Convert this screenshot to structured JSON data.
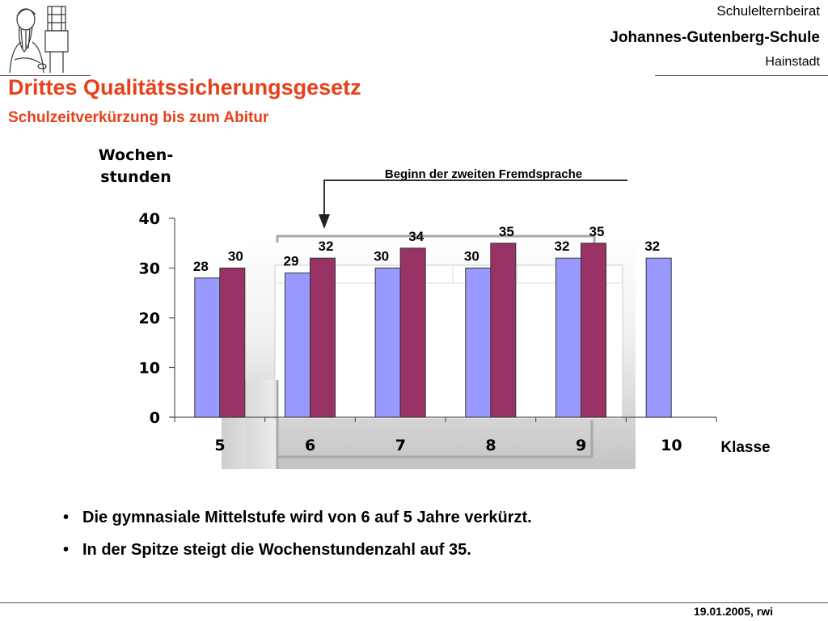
{
  "header": {
    "org_line1": "Schulelternbeirat",
    "org_line2": "Johannes-Gutenberg-Schule",
    "org_line3": "Hainstadt",
    "logo_icon": "gutenberg-portrait-icon"
  },
  "title": "Drittes Qualitätssicherungsgesetz",
  "subtitle": "Schulzeitverkürzung bis zum Abitur",
  "chart_data": {
    "type": "bar",
    "ylabel_line1": "Wochen-",
    "ylabel_line2": "stunden",
    "xlabel": "Klasse",
    "ylim": [
      0,
      40
    ],
    "yticks": [
      0,
      10,
      20,
      30,
      40
    ],
    "categories": [
      "5",
      "6",
      "7",
      "8",
      "9",
      "10"
    ],
    "series": [
      {
        "values": [
          28,
          29,
          30,
          30,
          32,
          32
        ],
        "color": "#9999ff"
      },
      {
        "values": [
          30,
          32,
          34,
          35,
          35,
          null
        ],
        "color": "#993366"
      }
    ],
    "annotation": "Beginn der zweiten Fremdsprache",
    "grid": false
  },
  "bullets": [
    "Die gymnasiale Mittelstufe wird von 6 auf 5 Jahre verkürzt.",
    "In der Spitze steigt die Wochenstundenzahl auf 35."
  ],
  "footer": "19.01.2005, rwi"
}
